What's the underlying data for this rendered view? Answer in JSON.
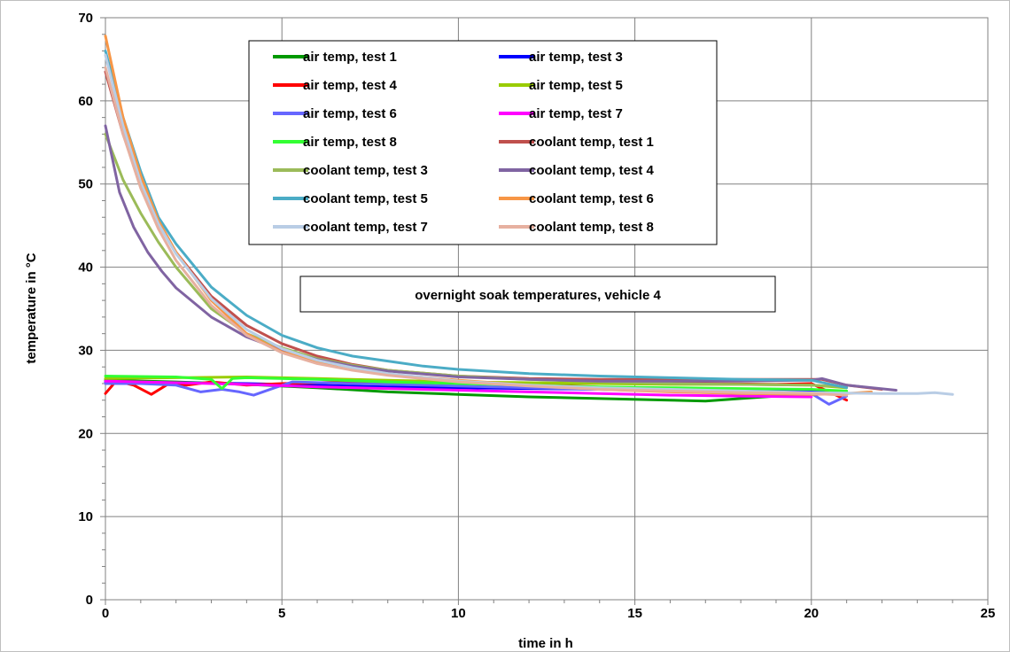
{
  "chart_data": {
    "type": "line",
    "title": "",
    "annotation": "overnight soak temperatures, vehicle 4",
    "xlabel": "time in h",
    "ylabel": "temperature in °C",
    "xlim": [
      0,
      25
    ],
    "ylim": [
      0,
      70
    ],
    "x_ticks": [
      "0",
      "5",
      "10",
      "15",
      "20",
      "25"
    ],
    "y_ticks": [
      "0",
      "10",
      "20",
      "30",
      "40",
      "50",
      "60",
      "70"
    ],
    "grid": true,
    "legend_position": "top-center",
    "series": [
      {
        "name": "air temp, test 1",
        "color": "#009900",
        "x": [
          0,
          2,
          4,
          6,
          8,
          10,
          12,
          14,
          16,
          17,
          18,
          19,
          20
        ],
        "y": [
          26.4,
          26.2,
          25.9,
          25.5,
          25.0,
          24.7,
          24.4,
          24.2,
          24.0,
          23.9,
          24.2,
          24.5,
          24.7
        ]
      },
      {
        "name": "air temp, test 3",
        "color": "#0000ff",
        "x": [
          0,
          2,
          4,
          6,
          8,
          10,
          12,
          14,
          16,
          18,
          20,
          21
        ],
        "y": [
          26.2,
          26.1,
          26.0,
          25.8,
          25.6,
          25.5,
          25.4,
          25.3,
          25.2,
          25.1,
          25.2,
          25.0
        ]
      },
      {
        "name": "air temp, test 4",
        "color": "#ff0000",
        "x": [
          0,
          0.3,
          0.8,
          1.3,
          1.8,
          2.3,
          3,
          4,
          5,
          7,
          9,
          11,
          13,
          15,
          17,
          19,
          20,
          21
        ],
        "y": [
          24.8,
          26.3,
          25.8,
          24.7,
          26.0,
          25.8,
          26.2,
          25.8,
          26.0,
          26.2,
          26.1,
          26.0,
          26.0,
          26.0,
          26.0,
          25.9,
          26.0,
          24.0
        ]
      },
      {
        "name": "air temp, test 5",
        "color": "#99cc00",
        "x": [
          0,
          2,
          4,
          6,
          8,
          10,
          12,
          14,
          16,
          18,
          20,
          21
        ],
        "y": [
          26.6,
          26.7,
          26.8,
          26.6,
          26.4,
          26.2,
          26.1,
          26.0,
          25.9,
          25.9,
          25.8,
          25.5
        ]
      },
      {
        "name": "air temp, test 6",
        "color": "#6666ff",
        "x": [
          0,
          1,
          2,
          2.7,
          3.3,
          3.8,
          4.2,
          4.8,
          5.3,
          7,
          9,
          11,
          13,
          15,
          17,
          19,
          20,
          20.5,
          21
        ],
        "y": [
          26.0,
          26.0,
          25.8,
          25.0,
          25.3,
          25.0,
          24.6,
          25.5,
          26.2,
          26.0,
          25.8,
          25.6,
          25.4,
          25.2,
          25.0,
          24.8,
          24.8,
          23.5,
          24.5
        ]
      },
      {
        "name": "air temp, test 7",
        "color": "#ff00ff",
        "x": [
          0,
          2,
          4,
          6,
          8,
          10,
          12,
          14,
          16,
          18,
          20
        ],
        "y": [
          26.3,
          26.1,
          25.9,
          25.6,
          25.4,
          25.2,
          25.0,
          24.8,
          24.6,
          24.5,
          24.4
        ]
      },
      {
        "name": "air temp, test 8",
        "color": "#33ff33",
        "x": [
          0,
          2,
          3,
          3.3,
          3.6,
          4,
          6,
          8,
          10,
          12,
          14,
          16,
          18,
          20,
          21
        ],
        "y": [
          26.9,
          26.8,
          26.5,
          25.4,
          26.6,
          26.7,
          26.5,
          26.2,
          26.0,
          25.8,
          25.6,
          25.5,
          25.4,
          25.3,
          25.1
        ]
      },
      {
        "name": "coolant temp, test 1",
        "color": "#c0504d",
        "x": [
          0,
          0.5,
          1,
          1.5,
          2,
          3,
          4,
          5,
          6,
          7,
          8,
          10,
          12,
          14,
          16,
          18,
          20,
          20.3,
          21,
          22
        ],
        "y": [
          63.5,
          56,
          50,
          45.5,
          41.8,
          36.5,
          33.0,
          30.8,
          29.3,
          28.3,
          27.6,
          26.9,
          26.6,
          26.5,
          26.5,
          26.5,
          26.5,
          26.5,
          25.8,
          25.3
        ]
      },
      {
        "name": "coolant temp, test 3",
        "color": "#9bbb59",
        "x": [
          0,
          0.5,
          1,
          1.5,
          2,
          3,
          4,
          5,
          6,
          7,
          8,
          10,
          12,
          14,
          16,
          18,
          20,
          21
        ],
        "y": [
          56.0,
          50.5,
          46.5,
          43,
          40,
          35,
          32.0,
          30.3,
          29.0,
          28.2,
          27.6,
          26.9,
          26.5,
          26.2,
          26.0,
          25.9,
          25.8,
          25.6
        ]
      },
      {
        "name": "coolant temp, test 4",
        "color": "#8064a2",
        "x": [
          0,
          0.4,
          0.8,
          1.2,
          1.6,
          2,
          3,
          4,
          5,
          6,
          7,
          8,
          10,
          12,
          14,
          16,
          18,
          20,
          20.3,
          21,
          22.4
        ],
        "y": [
          57.0,
          49.0,
          44.8,
          41.8,
          39.5,
          37.5,
          34.0,
          31.6,
          30.0,
          28.9,
          28.1,
          27.5,
          26.8,
          26.5,
          26.3,
          26.3,
          26.3,
          26.4,
          26.6,
          25.8,
          25.2
        ]
      },
      {
        "name": "coolant temp, test 5",
        "color": "#4bacc6",
        "x": [
          0,
          0.5,
          1,
          1.5,
          2,
          3,
          4,
          5,
          6,
          7,
          8,
          9,
          10,
          12,
          14,
          16,
          18,
          20,
          21
        ],
        "y": [
          66.0,
          58.0,
          51.5,
          46.0,
          42.8,
          37.6,
          34.2,
          31.8,
          30.3,
          29.3,
          28.7,
          28.1,
          27.7,
          27.2,
          26.9,
          26.7,
          26.5,
          26.4,
          25.5
        ]
      },
      {
        "name": "coolant temp, test 6",
        "color": "#f79646",
        "x": [
          0,
          0.5,
          1,
          1.5,
          2,
          3,
          4,
          5,
          6,
          7,
          8,
          10,
          12,
          14,
          16,
          18,
          20,
          21,
          21.7
        ],
        "y": [
          67.8,
          58,
          51,
          45.6,
          41.8,
          36,
          32.0,
          29.8,
          28.7,
          27.8,
          27.1,
          26.4,
          25.8,
          25.3,
          25.0,
          24.8,
          24.7,
          24.8,
          25.0
        ]
      },
      {
        "name": "coolant temp, test 7",
        "color": "#b9cde5",
        "x": [
          0,
          0.5,
          1,
          1.5,
          2,
          3,
          4,
          5,
          6,
          7,
          8,
          10,
          12,
          14,
          16,
          18,
          20,
          22,
          23,
          23.5,
          24
        ],
        "y": [
          65.5,
          57,
          50.2,
          45.2,
          41.6,
          36.2,
          32.5,
          30.2,
          28.8,
          27.9,
          27.2,
          26.3,
          25.8,
          25.5,
          25.3,
          25.1,
          24.9,
          24.8,
          24.8,
          24.9,
          24.7
        ]
      },
      {
        "name": "coolant temp, test 8",
        "color": "#e6b0a0",
        "x": [
          0,
          0.5,
          1,
          1.5,
          2,
          3,
          4,
          5,
          6,
          7,
          8,
          10,
          12,
          14,
          16,
          18,
          20,
          21
        ],
        "y": [
          64.0,
          56,
          49.5,
          44.6,
          40.8,
          35.4,
          31.8,
          29.7,
          28.4,
          27.6,
          27.0,
          26.2,
          25.7,
          25.3,
          25.1,
          24.9,
          24.8,
          24.6
        ]
      }
    ]
  }
}
